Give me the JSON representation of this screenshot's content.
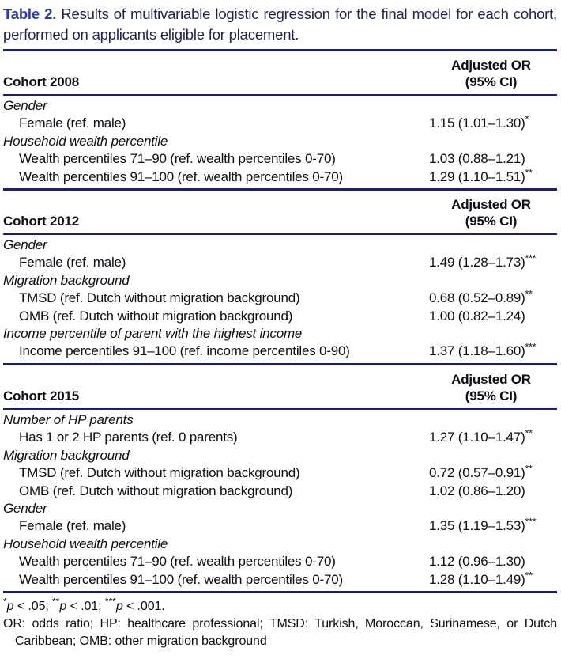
{
  "title": {
    "label": "Table 2.",
    "text": " Results of multivariable logistic regression for the final model for each cohort, performed on applicants eligible for placement."
  },
  "column_header": {
    "line1": "Adjusted OR",
    "line2": "(95% CI)"
  },
  "sections": [
    {
      "cohort": "Cohort 2008",
      "rows": [
        {
          "type": "category",
          "label": "Gender"
        },
        {
          "type": "item",
          "label": "Female (ref. male)",
          "value": "1.15 (1.01–1.30)",
          "stars": "*"
        },
        {
          "type": "category",
          "label": "Household wealth percentile"
        },
        {
          "type": "item",
          "label": "Wealth percentiles 71–90 (ref. wealth percentiles 0-70)",
          "value": "1.03 (0.88–1.21)",
          "stars": ""
        },
        {
          "type": "item",
          "label": "Wealth percentiles 91–100 (ref. wealth percentiles 0-70)",
          "value": "1.29 (1.10–1.51)",
          "stars": "**"
        }
      ]
    },
    {
      "cohort": "Cohort 2012",
      "rows": [
        {
          "type": "category",
          "label": "Gender"
        },
        {
          "type": "item",
          "label": "Female (ref. male)",
          "value": "1.49 (1.28–1.73)",
          "stars": "***"
        },
        {
          "type": "category",
          "label": "Migration background"
        },
        {
          "type": "item",
          "label": "TMSD (ref. Dutch without migration background)",
          "value": "0.68 (0.52–0.89)",
          "stars": "**"
        },
        {
          "type": "item",
          "label": "OMB (ref. Dutch without migration background)",
          "value": "1.00 (0.82–1.24)",
          "stars": ""
        },
        {
          "type": "category",
          "label": "Income percentile of parent with the highest income"
        },
        {
          "type": "item",
          "label": "Income percentiles 91–100 (ref. income percentiles 0-90)",
          "value": "1.37 (1.18–1.60)",
          "stars": "***"
        }
      ]
    },
    {
      "cohort": "Cohort 2015",
      "rows": [
        {
          "type": "category",
          "label": "Number of HP parents"
        },
        {
          "type": "item",
          "label": "Has 1 or 2 HP parents (ref. 0 parents)",
          "value": "1.27 (1.10–1.47)",
          "stars": "**"
        },
        {
          "type": "category",
          "label": "Migration background"
        },
        {
          "type": "item",
          "label": "TMSD (ref. Dutch without migration background)",
          "value": "0.72 (0.57–0.91)",
          "stars": "**"
        },
        {
          "type": "item",
          "label": "OMB (ref. Dutch without migration background)",
          "value": "1.02 (0.86–1.20)",
          "stars": ""
        },
        {
          "type": "category",
          "label": "Gender"
        },
        {
          "type": "item",
          "label": "Female (ref. male)",
          "value": "1.35 (1.19–1.53)",
          "stars": "***"
        },
        {
          "type": "category",
          "label": "Household wealth percentile"
        },
        {
          "type": "item",
          "label": "Wealth percentiles 71–90 (ref. wealth percentiles 0-70)",
          "value": "1.12 (0.96–1.30)",
          "stars": ""
        },
        {
          "type": "item",
          "label": "Wealth percentiles 91–100 (ref. wealth percentiles 0-70)",
          "value": "1.28 (1.10–1.49)",
          "stars": "**"
        }
      ]
    }
  ],
  "footnotes": {
    "sig": [
      {
        "stars": "*",
        "p": "p",
        "text": " < .05; "
      },
      {
        "stars": "**",
        "p": "p",
        "text": " < .01; "
      },
      {
        "stars": "***",
        "p": "p",
        "text": " < .001."
      }
    ],
    "abbreviations": "OR: odds ratio; HP: healthcare professional; TMSD: Turkish, Moroccan, Surinamese, or Dutch Caribbean; OMB: other migration background"
  },
  "colors": {
    "rule_navy": "#1a1f70",
    "title_accent_blue": "#2e3ba0",
    "title_text": "#1d2448",
    "body_text": "#0d0e14"
  }
}
